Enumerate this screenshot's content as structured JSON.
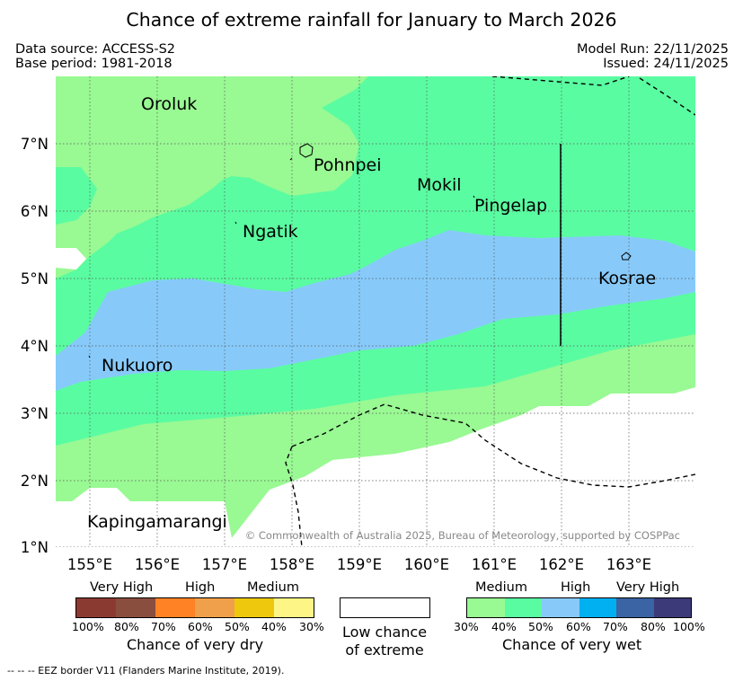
{
  "title": "Chance of extreme rainfall for January to March 2026",
  "meta": {
    "data_source": "Data source: ACCESS-S2",
    "base_period": "Base period: 1981-2018",
    "model_run": "Model Run: 22/11/2025",
    "issued": "Issued: 24/11/2025"
  },
  "map": {
    "lat_labels": [
      "7°N",
      "6°N",
      "5°N",
      "4°N",
      "3°N",
      "2°N",
      "1°N"
    ],
    "lon_labels": [
      "155°E",
      "156°E",
      "157°E",
      "158°E",
      "159°E",
      "160°E",
      "161°E",
      "162°E",
      "163°E"
    ],
    "places": [
      "Oroluk",
      "Pohnpei",
      "Mokil",
      "Pingelap",
      "Ngatik",
      "Kosrae",
      "Nukuoro",
      "Kapingamarangi"
    ],
    "copyright": "© Commonwealth of Australia 2025, Bureau of Meteorology, supported by COSPPac",
    "colors": {
      "medium_wet": "#99f993",
      "high_wet": "#5afca1",
      "very_high_wet": "#87cafa",
      "low": "#ffffff"
    }
  },
  "legend": {
    "dry": {
      "categories": [
        "Very High",
        "High",
        "Medium"
      ],
      "percents": [
        "100%",
        "80%",
        "70%",
        "60%",
        "50%",
        "40%",
        "30%"
      ],
      "colors": [
        "#8b3a32",
        "#8a4e3f",
        "#ff8224",
        "#f0a04a",
        "#eec80c",
        "#fdf586"
      ],
      "caption": "Chance of very dry"
    },
    "low": {
      "line1": "Low chance",
      "line2": "of extreme"
    },
    "wet": {
      "categories": [
        "Medium",
        "High",
        "Very High"
      ],
      "percents": [
        "30%",
        "40%",
        "50%",
        "60%",
        "70%",
        "80%",
        "100%"
      ],
      "colors": [
        "#99f993",
        "#5afca1",
        "#87cafa",
        "#00b0f0",
        "#3a64a4",
        "#3c3a78"
      ],
      "caption": "Chance of very wet"
    }
  },
  "footnote": "--  --  -- EEZ border V11 (Flanders Marine Institute, 2019)."
}
